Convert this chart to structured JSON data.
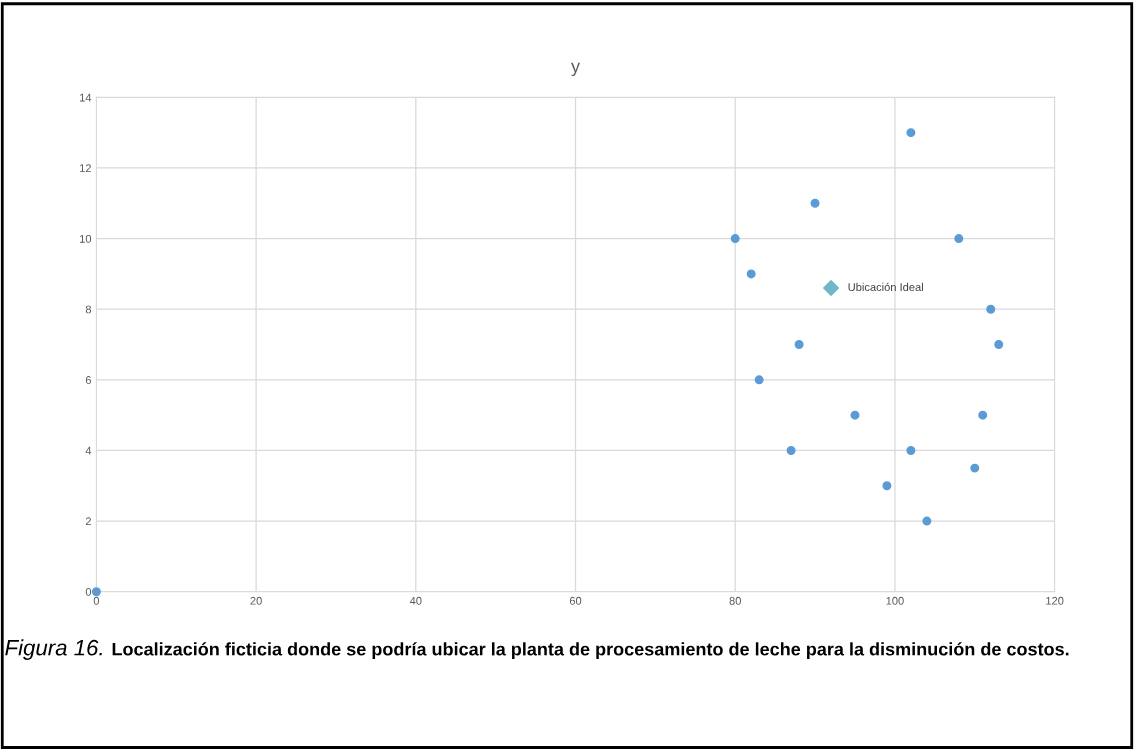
{
  "chart_data": {
    "type": "scatter",
    "title": "y",
    "series": [
      {
        "color": "#5b9bd5",
        "marker": "circle",
        "x": [
          0,
          80,
          82,
          83,
          87,
          88,
          90,
          95,
          99,
          102,
          102,
          104,
          108,
          110,
          111,
          112,
          113
        ],
        "values": [
          0,
          10,
          9,
          6,
          4,
          7,
          11,
          5,
          3,
          13,
          4,
          2,
          10,
          3.5,
          5,
          8,
          7
        ]
      },
      {
        "color": "#6fb7c4",
        "marker": "diamond",
        "x": [
          92
        ],
        "values": [
          8.6
        ]
      }
    ],
    "xlim": [
      0,
      120
    ],
    "xticks": [
      0,
      20,
      40,
      60,
      80,
      100,
      120
    ],
    "ylim": [
      0,
      14
    ],
    "yticks": [
      0,
      2,
      4,
      6,
      8,
      10,
      12,
      14
    ],
    "grid": true,
    "legend": false,
    "annotations": [
      {
        "text": "Ubicación Ideal",
        "x": 92,
        "y": 8.6
      },
      "Figura 16.",
      "Localización ficticia donde se podría ubicar la planta de procesamiento de leche para la disminución de costos."
    ]
  }
}
